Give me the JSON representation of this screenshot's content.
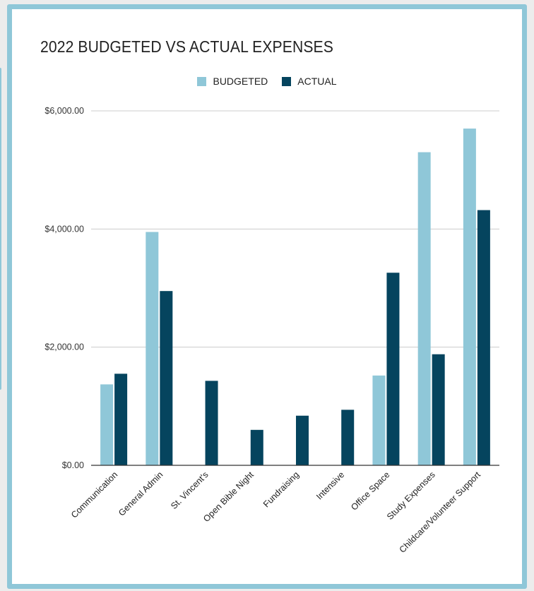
{
  "chart_data": {
    "type": "bar",
    "title": "2022 BUDGETED VS ACTUAL EXPENSES",
    "categories": [
      "Communication",
      "General Admin",
      "St. Vincent's",
      "Open Bible Night",
      "Fundraising",
      "Intensive",
      "Office Space",
      "Study Expenses",
      "Childcare/Volunteer Support"
    ],
    "series": [
      {
        "name": "BUDGETED",
        "color": "#8fc7d8",
        "values": [
          1370,
          3950,
          0,
          0,
          0,
          0,
          1520,
          5300,
          5700
        ]
      },
      {
        "name": "ACTUAL",
        "color": "#05445e",
        "values": [
          1550,
          2950,
          1430,
          600,
          840,
          940,
          3260,
          1880,
          4320
        ]
      }
    ],
    "ylim": [
      0,
      6000
    ],
    "yticks": [
      0,
      2000,
      4000,
      6000
    ],
    "ytick_labels": [
      "$0.00",
      "$2,000.00",
      "$4,000.00",
      "$6,000.00"
    ],
    "legend_position": "top-center",
    "grid": true
  }
}
